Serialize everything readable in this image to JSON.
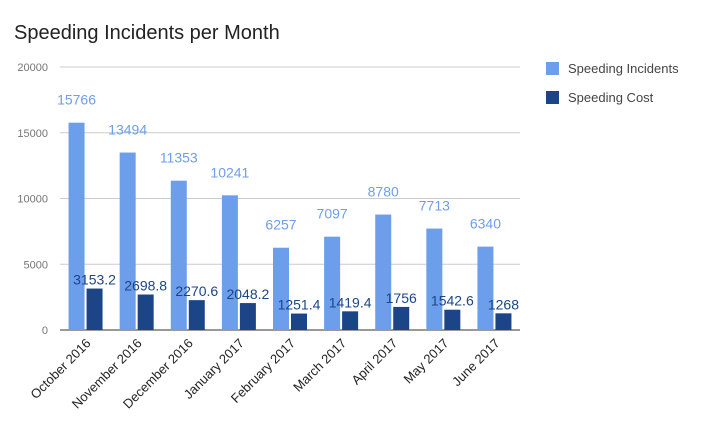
{
  "chart_data": {
    "type": "bar",
    "title": "Speeding Incidents per Month",
    "categories": [
      "October 2016",
      "November 2016",
      "December 2016",
      "January 2017",
      "February 2017",
      "March 2017",
      "April 2017",
      "May 2017",
      "June 2017"
    ],
    "series": [
      {
        "name": "Speeding Incidents",
        "color": "#6d9eeb",
        "values": [
          15766,
          13494,
          11353,
          10241,
          6257,
          7097,
          8780,
          7713,
          6340
        ],
        "labels": [
          "15766",
          "13494",
          "11353",
          "10241",
          "6257",
          "7097",
          "8780",
          "7713",
          "6340"
        ]
      },
      {
        "name": "Speeding Cost",
        "color": "#1c4587",
        "values": [
          3153.2,
          2698.8,
          2270.6,
          2048.2,
          1251.4,
          1419.4,
          1756,
          1542.6,
          1268
        ],
        "labels": [
          "3153.2",
          "2698.8",
          "2270.6",
          "2048.2",
          "1251.4",
          "1419.4",
          "1756",
          "1542.6",
          "1268"
        ]
      }
    ],
    "ylim": [
      0,
      20000
    ],
    "yticks": [
      "0",
      "5000",
      "10000",
      "15000",
      "20000"
    ],
    "grid": true,
    "legend": "right"
  }
}
